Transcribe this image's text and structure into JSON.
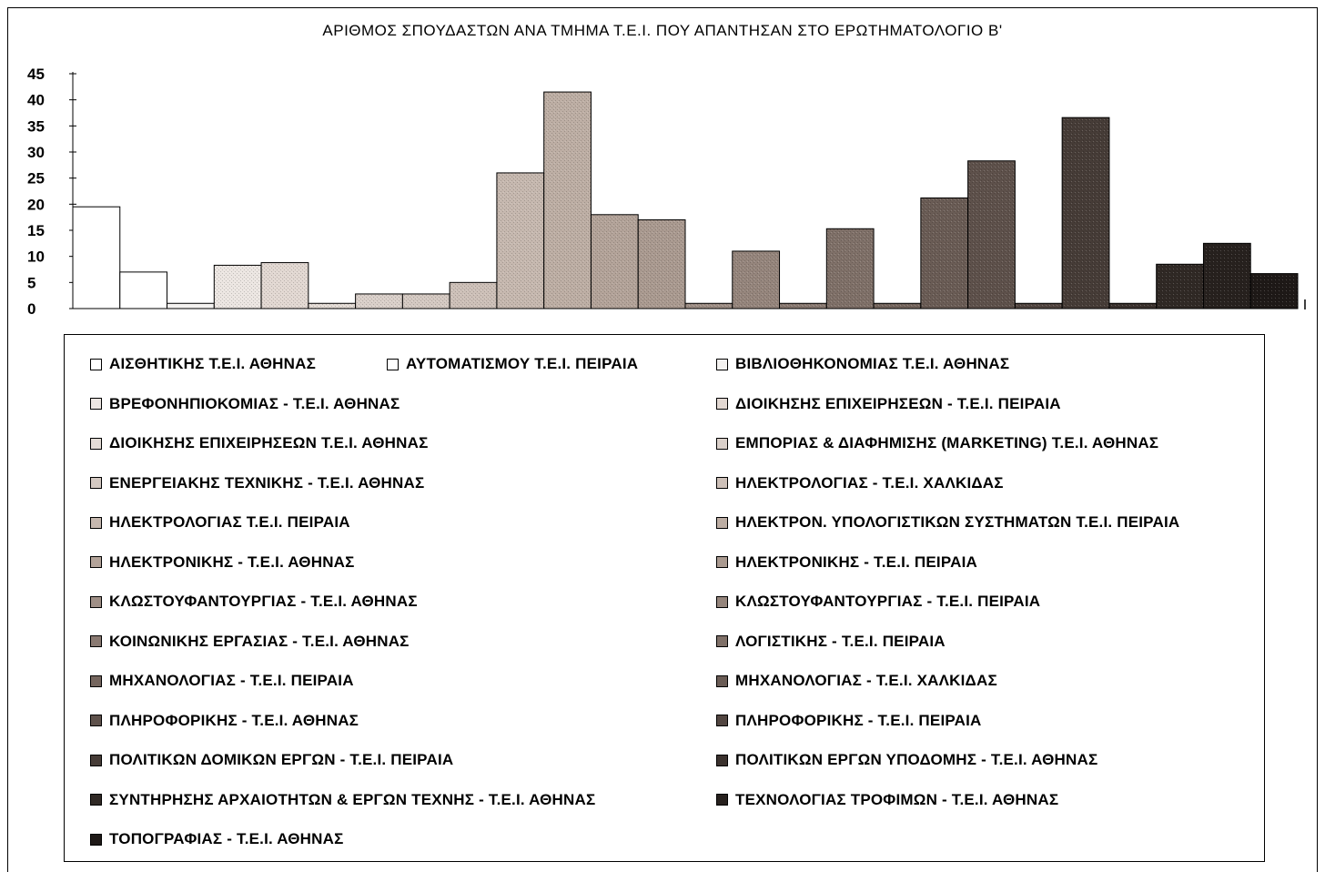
{
  "chart_data": {
    "type": "bar",
    "title": "ΑΡΙΘΜΟΣ ΣΠΟΥΔΑΣΤΩΝ ΑΝΑ ΤΜΗΜΑ Τ.Ε.Ι. ΠΟΥ ΑΠΑΝΤΗΣΑΝ ΣΤΟ ΕΡΩΤΗΜΑΤΟΛΟΓΙΟ Β'",
    "xlabel": "",
    "ylabel": "",
    "ylim": [
      0,
      45
    ],
    "yticks": [
      "45",
      "40",
      "35",
      "30",
      "25",
      "20",
      "15",
      "10",
      "5",
      "0"
    ],
    "grid": false,
    "legend_position": "bottom",
    "categories": [
      "ΑΙΣΘΗΤΙΚΗΣ Τ.Ε.Ι. ΑΘΗΝΑΣ",
      "ΑΥΤΟΜΑΤΙΣΜΟΥ Τ.Ε.Ι. ΠΕΙΡΑΙΑ",
      "ΒΙΒΛΙΟΘΗΚΟΝΟΜΙΑΣ Τ.Ε.Ι. ΑΘΗΝΑΣ",
      "ΒΡΕΦΟΝΗΠΙΟΚΟΜΙΑΣ - Τ.Ε.Ι. ΑΘΗΝΑΣ",
      "ΔΙΟΙΚΗΣΗΣ ΕΠΙΧΕΙΡΗΣΕΩΝ - Τ.Ε.Ι. ΠΕΙΡΑΙΑ",
      "ΔΙΟΙΚΗΣΗΣ ΕΠΙΧΕΙΡΗΣΕΩΝ Τ.Ε.Ι. ΑΘΗΝΑΣ",
      "ΕΜΠΟΡΙΑΣ & ΔΙΑΦΗΜΙΣΗΣ (MARKETING) Τ.Ε.Ι. ΑΘΗΝΑΣ",
      "ΕΝΕΡΓΕΙΑΚΗΣ ΤΕΧΝΙΚΗΣ - Τ.Ε.Ι. ΑΘΗΝΑΣ",
      "ΗΛΕΚΤΡΟΛΟΓΙΑΣ - Τ.Ε.Ι. ΧΑΛΚΙΔΑΣ",
      "ΗΛΕΚΤΡΟΛΟΓΙΑΣ Τ.Ε.Ι. ΠΕΙΡΑΙΑ",
      "ΗΛΕΚΤΡΟΝ. ΥΠΟΛΟΓΙΣΤΙΚΩΝ ΣΥΣΤΗΜΑΤΩΝ Τ.Ε.Ι. ΠΕΙΡΑΙΑ",
      "ΗΛΕΚΤΡΟΝΙΚΗΣ - Τ.Ε.Ι. ΑΘΗΝΑΣ",
      "ΗΛΕΚΤΡΟΝΙΚΗΣ - Τ.Ε.Ι. ΠΕΙΡΑΙΑ",
      "ΚΛΩΣΤΟΥΦΑΝΤΟΥΡΓΙΑΣ - Τ.Ε.Ι. ΑΘΗΝΑΣ",
      "ΚΛΩΣΤΟΥΦΑΝΤΟΥΡΓΙΑΣ - Τ.Ε.Ι. ΠΕΙΡΑΙΑ",
      "ΚΟΙΝΩΝΙΚΗΣ ΕΡΓΑΣΙΑΣ - Τ.Ε.Ι. ΑΘΗΝΑΣ",
      "ΛΟΓΙΣΤΙΚΗΣ - Τ.Ε.Ι. ΠΕΙΡΑΙΑ",
      "ΜΗΧΑΝΟΛΟΓΙΑΣ - Τ.Ε.Ι. ΠΕΙΡΑΙΑ",
      "ΜΗΧΑΝΟΛΟΓΙΑΣ - Τ.Ε.Ι. ΧΑΛΚΙΔΑΣ",
      "ΠΛΗΡΟΦΟΡΙΚΗΣ - Τ.Ε.Ι. ΑΘΗΝΑΣ",
      "ΠΛΗΡΟΦΟΡΙΚΗΣ - Τ.Ε.Ι. ΠΕΙΡΑΙΑ",
      "ΠΟΛΙΤΙΚΩΝ ΔΟΜΙΚΩΝ ΕΡΓΩΝ - Τ.Ε.Ι. ΠΕΙΡΑΙΑ",
      "ΠΟΛΙΤΙΚΩΝ ΕΡΓΩΝ ΥΠΟΔΟΜΗΣ - Τ.Ε.Ι. ΑΘΗΝΑΣ",
      "ΣΥΝΤΗΡΗΣΗΣ ΑΡΧΑΙΟΤΗΤΩΝ & ΕΡΓΩΝ ΤΕΧΝΗΣ - Τ.Ε.Ι. ΑΘΗΝΑΣ",
      "ΤΕΧΝΟΛΟΓΙΑΣ ΤΡΟΦΙΜΩΝ - Τ.Ε.Ι. ΑΘΗΝΑΣ",
      "ΤΟΠΟΓΡΑΦΙΑΣ - Τ.Ε.Ι. ΑΘΗΝΑΣ"
    ],
    "values": [
      19.5,
      7,
      1,
      8.3,
      8.8,
      1,
      2.8,
      2.8,
      5,
      26,
      41.5,
      18,
      17,
      1,
      11,
      1,
      15.3,
      1,
      21.2,
      28.3,
      1,
      36.6,
      1,
      8.5,
      12.5,
      6.7
    ],
    "colors": [
      "#ffffff",
      "#ffffff",
      "#f4f2f0",
      "#ece6e2",
      "#e2d8d2",
      "#e4dcd6",
      "#dad0ca",
      "#d4c9c2",
      "#cdc0b8",
      "#c6b8af",
      "#bdaea4",
      "#b3a399",
      "#aa9a90",
      "#9f8f86",
      "#95857c",
      "#8a7a72",
      "#7f7068",
      "#75665e",
      "#6a5c55",
      "#5e514b",
      "#524641",
      "#463c37",
      "#3b322e",
      "#302925",
      "#27211e",
      "#1e1917"
    ]
  },
  "legend": {
    "items": [
      "ΑΙΣΘΗΤΙΚΗΣ Τ.Ε.Ι. ΑΘΗΝΑΣ",
      "ΑΥΤΟΜΑΤΙΣΜΟΥ Τ.Ε.Ι. ΠΕΙΡΑΙΑ",
      "ΒΙΒΛΙΟΘΗΚΟΝΟΜΙΑΣ Τ.Ε.Ι. ΑΘΗΝΑΣ",
      "ΒΡΕΦΟΝΗΠΙΟΚΟΜΙΑΣ - Τ.Ε.Ι. ΑΘΗΝΑΣ",
      "ΔΙΟΙΚΗΣΗΣ ΕΠΙΧΕΙΡΗΣΕΩΝ - Τ.Ε.Ι. ΠΕΙΡΑΙΑ",
      "ΔΙΟΙΚΗΣΗΣ ΕΠΙΧΕΙΡΗΣΕΩΝ Τ.Ε.Ι. ΑΘΗΝΑΣ",
      "ΕΜΠΟΡΙΑΣ & ΔΙΑΦΗΜΙΣΗΣ (MARKETING) Τ.Ε.Ι. ΑΘΗΝΑΣ",
      "ΕΝΕΡΓΕΙΑΚΗΣ ΤΕΧΝΙΚΗΣ - Τ.Ε.Ι. ΑΘΗΝΑΣ",
      "ΗΛΕΚΤΡΟΛΟΓΙΑΣ - Τ.Ε.Ι. ΧΑΛΚΙΔΑΣ",
      "ΗΛΕΚΤΡΟΛΟΓΙΑΣ Τ.Ε.Ι. ΠΕΙΡΑΙΑ",
      "ΗΛΕΚΤΡΟΝ. ΥΠΟΛΟΓΙΣΤΙΚΩΝ ΣΥΣΤΗΜΑΤΩΝ Τ.Ε.Ι. ΠΕΙΡΑΙΑ",
      "ΗΛΕΚΤΡΟΝΙΚΗΣ - Τ.Ε.Ι. ΑΘΗΝΑΣ",
      "ΗΛΕΚΤΡΟΝΙΚΗΣ - Τ.Ε.Ι. ΠΕΙΡΑΙΑ",
      "ΚΛΩΣΤΟΥΦΑΝΤΟΥΡΓΙΑΣ - Τ.Ε.Ι. ΑΘΗΝΑΣ",
      "ΚΛΩΣΤΟΥΦΑΝΤΟΥΡΓΙΑΣ - Τ.Ε.Ι. ΠΕΙΡΑΙΑ",
      "ΚΟΙΝΩΝΙΚΗΣ ΕΡΓΑΣΙΑΣ - Τ.Ε.Ι. ΑΘΗΝΑΣ",
      "ΛΟΓΙΣΤΙΚΗΣ - Τ.Ε.Ι. ΠΕΙΡΑΙΑ",
      "ΜΗΧΑΝΟΛΟΓΙΑΣ - Τ.Ε.Ι. ΠΕΙΡΑΙΑ",
      "ΜΗΧΑΝΟΛΟΓΙΑΣ - Τ.Ε.Ι. ΧΑΛΚΙΔΑΣ",
      "ΠΛΗΡΟΦΟΡΙΚΗΣ - Τ.Ε.Ι. ΑΘΗΝΑΣ",
      "ΠΛΗΡΟΦΟΡΙΚΗΣ - Τ.Ε.Ι. ΠΕΙΡΑΙΑ",
      "ΠΟΛΙΤΙΚΩΝ ΔΟΜΙΚΩΝ ΕΡΓΩΝ - Τ.Ε.Ι. ΠΕΙΡΑΙΑ",
      "ΠΟΛΙΤΙΚΩΝ ΕΡΓΩΝ ΥΠΟΔΟΜΗΣ - Τ.Ε.Ι. ΑΘΗΝΑΣ",
      "ΣΥΝΤΗΡΗΣΗΣ ΑΡΧΑΙΟΤΗΤΩΝ & ΕΡΓΩΝ ΤΕΧΝΗΣ - Τ.Ε.Ι. ΑΘΗΝΑΣ",
      "ΤΕΧΝΟΛΟΓΙΑΣ ΤΡΟΦΙΜΩΝ - Τ.Ε.Ι. ΑΘΗΝΑΣ",
      "ΤΟΠΟΓΡΑΦΙΑΣ - Τ.Ε.Ι. ΑΘΗΝΑΣ"
    ]
  }
}
